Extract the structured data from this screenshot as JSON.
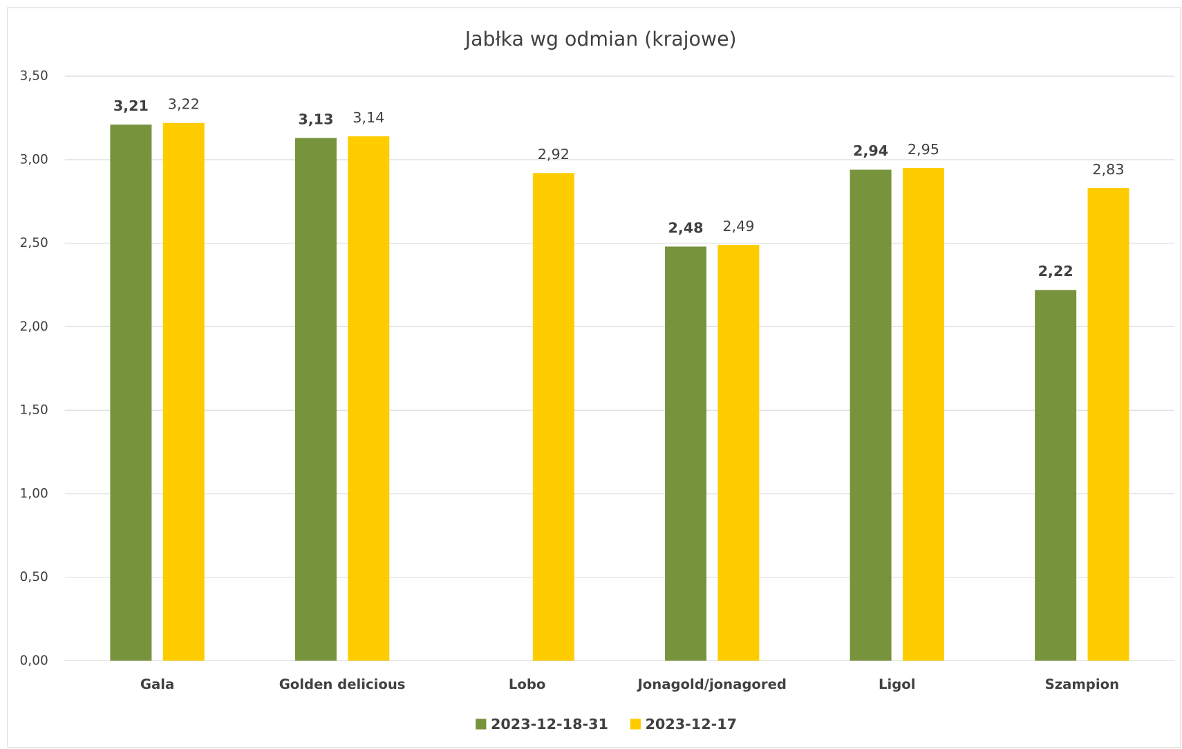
{
  "chart_data": {
    "type": "bar",
    "title": "Jabłka wg odmian (krajowe)",
    "categories": [
      "Gala",
      "Golden delicious",
      "Lobo",
      "Jonagold/jonagored",
      "Ligol",
      "Szampion"
    ],
    "series": [
      {
        "name": "2023-12-18-31",
        "color": "#77933c",
        "values": [
          3.21,
          3.13,
          null,
          2.48,
          2.94,
          2.22
        ],
        "value_labels": [
          "3,21",
          "3,13",
          null,
          "2,48",
          "2,94",
          "2,22"
        ]
      },
      {
        "name": "2023-12-17",
        "color": "#ffcc00",
        "values": [
          3.22,
          3.14,
          2.92,
          2.49,
          2.95,
          2.83
        ],
        "value_labels": [
          "3,22",
          "3,14",
          "2,92",
          "2,49",
          "2,95",
          "2,83"
        ]
      }
    ],
    "ylim": [
      0,
      3.5
    ],
    "yticks": [
      {
        "value": 0,
        "label": "0,00"
      },
      {
        "value": 0.5,
        "label": "0,50"
      },
      {
        "value": 1,
        "label": "1,00"
      },
      {
        "value": 1.5,
        "label": "1,50"
      },
      {
        "value": 2,
        "label": "2,00"
      },
      {
        "value": 2.5,
        "label": "2,50"
      },
      {
        "value": 3,
        "label": "3,00"
      },
      {
        "value": 3.5,
        "label": "3,50"
      }
    ],
    "grid": true,
    "legend": "bottom"
  }
}
